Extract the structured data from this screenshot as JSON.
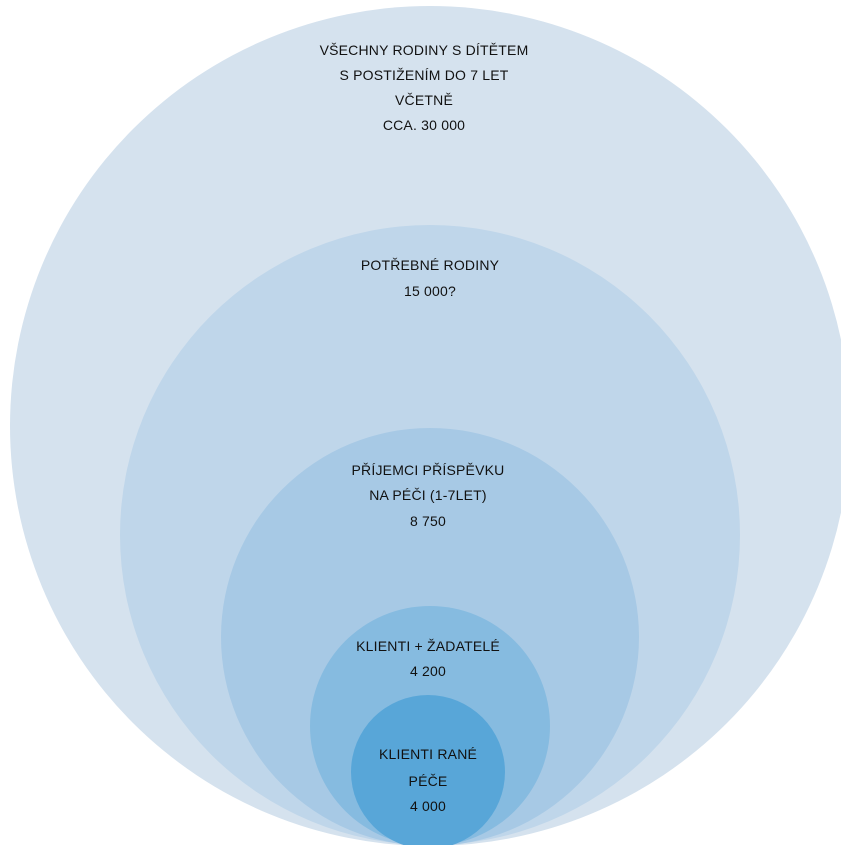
{
  "diagram": {
    "circles": [
      {
        "id": "all-families",
        "color": "#d5e2ee",
        "lines": [
          "VŠECHNY RODINY S DÍTĚTEM",
          "S POSTIŽENÍM DO 7 LET",
          "VČETNĚ",
          "CCA. 30 000"
        ]
      },
      {
        "id": "needy-families",
        "color": "#bfd6ea",
        "lines": [
          "POTŘEBNÉ RODINY",
          "15 000?"
        ]
      },
      {
        "id": "care-allowance-recipients",
        "color": "#a7c9e5",
        "lines": [
          "PŘÍJEMCI PŘÍSPĚVKU",
          "NA PÉČI (1-7LET)",
          "8 750"
        ]
      },
      {
        "id": "clients-and-applicants",
        "color": "#86bbe0",
        "lines": [
          "KLIENTI + ŽADATELÉ",
          "4 200"
        ]
      },
      {
        "id": "early-care-clients",
        "color": "#58a6d8",
        "lines": [
          "KLIENTI RANÉ",
          "PÉČE",
          "4 000"
        ]
      }
    ]
  }
}
